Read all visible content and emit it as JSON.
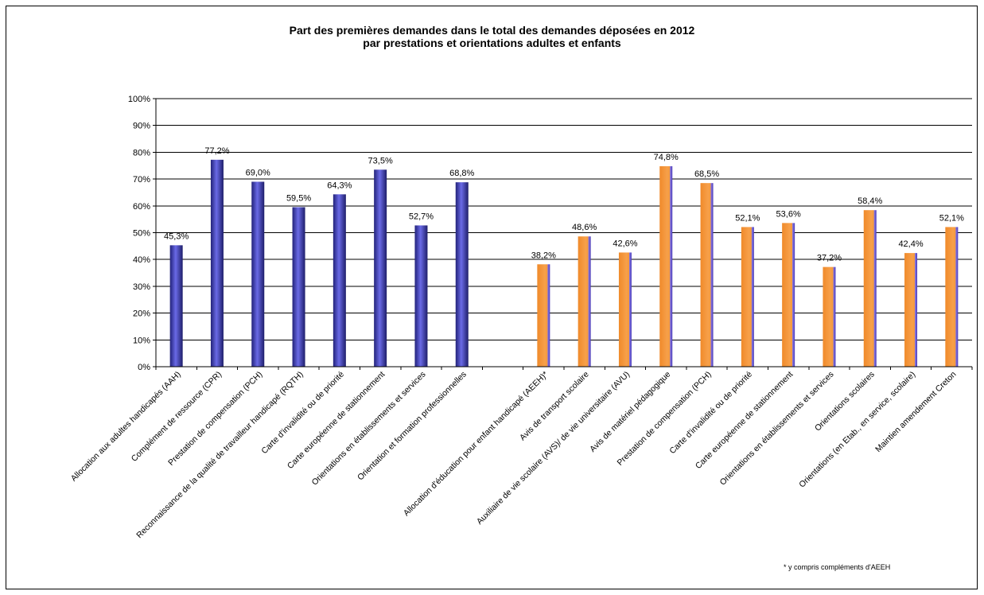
{
  "chart_data": {
    "type": "bar",
    "title_line1": "Part des premières demandes dans le total des demandes déposées en 2012",
    "title_line2": "par prestations et orientations adultes et enfants",
    "xlabel": "",
    "ylabel": "",
    "ylim": [
      0,
      100
    ],
    "yticks": [
      "0%",
      "10%",
      "20%",
      "30%",
      "40%",
      "50%",
      "60%",
      "70%",
      "80%",
      "90%",
      "100%"
    ],
    "grid": true,
    "colors": {
      "adultes": "#3b3bb8",
      "enfants": "#f39a3c",
      "enfants_edge": "#6b5bd6"
    },
    "categories": [
      "Allocation aux adultes handicapés (AAH)",
      "Complément de ressource (CPR)",
      "Prestation de compensation (PCH)",
      "Reconnaissance de la qualité de travailleur handicapé (RQTH)",
      "Carte d'invalidité ou de priorité",
      "Carte européenne de stationnement",
      "Orientations en établissements et services",
      "Orientation et formation professionnelles",
      "",
      "Allocation d'éducation pour enfant handicapé (AEEH)*",
      "Avis de transport scolaire",
      "Auxiliaire de vie scolaire (AVS)/ de vie universitaire (AVU)",
      "Avis de matériel pédagogique",
      "Prestation de compensation (PCH)",
      "Carte d'invalidité ou de priorité",
      "Carte européenne de stationnement",
      "Orientations en établissements et services",
      "Orientations scolaires",
      "Orientations (en Etab., en service, scolaire)",
      "Maintien amendement Creton"
    ],
    "values": [
      45.3,
      77.2,
      69.0,
      59.5,
      64.3,
      73.5,
      52.7,
      68.8,
      null,
      38.2,
      48.6,
      42.6,
      74.8,
      68.5,
      52.1,
      53.6,
      37.2,
      58.4,
      42.4,
      52.1
    ],
    "labels": [
      "45,3%",
      "77,2%",
      "69,0%",
      "59,5%",
      "64,3%",
      "73,5%",
      "52,7%",
      "68,8%",
      "",
      "38,2%",
      "48,6%",
      "42,6%",
      "74,8%",
      "68,5%",
      "52,1%",
      "53,6%",
      "37,2%",
      "58,4%",
      "42,4%",
      "52,1%"
    ],
    "groups": [
      "adultes",
      "adultes",
      "adultes",
      "adultes",
      "adultes",
      "adultes",
      "adultes",
      "adultes",
      "",
      "enfants",
      "enfants",
      "enfants",
      "enfants",
      "enfants",
      "enfants",
      "enfants",
      "enfants",
      "enfants",
      "enfants",
      "enfants"
    ],
    "footnote": "* y compris compléments d'AEEH"
  }
}
